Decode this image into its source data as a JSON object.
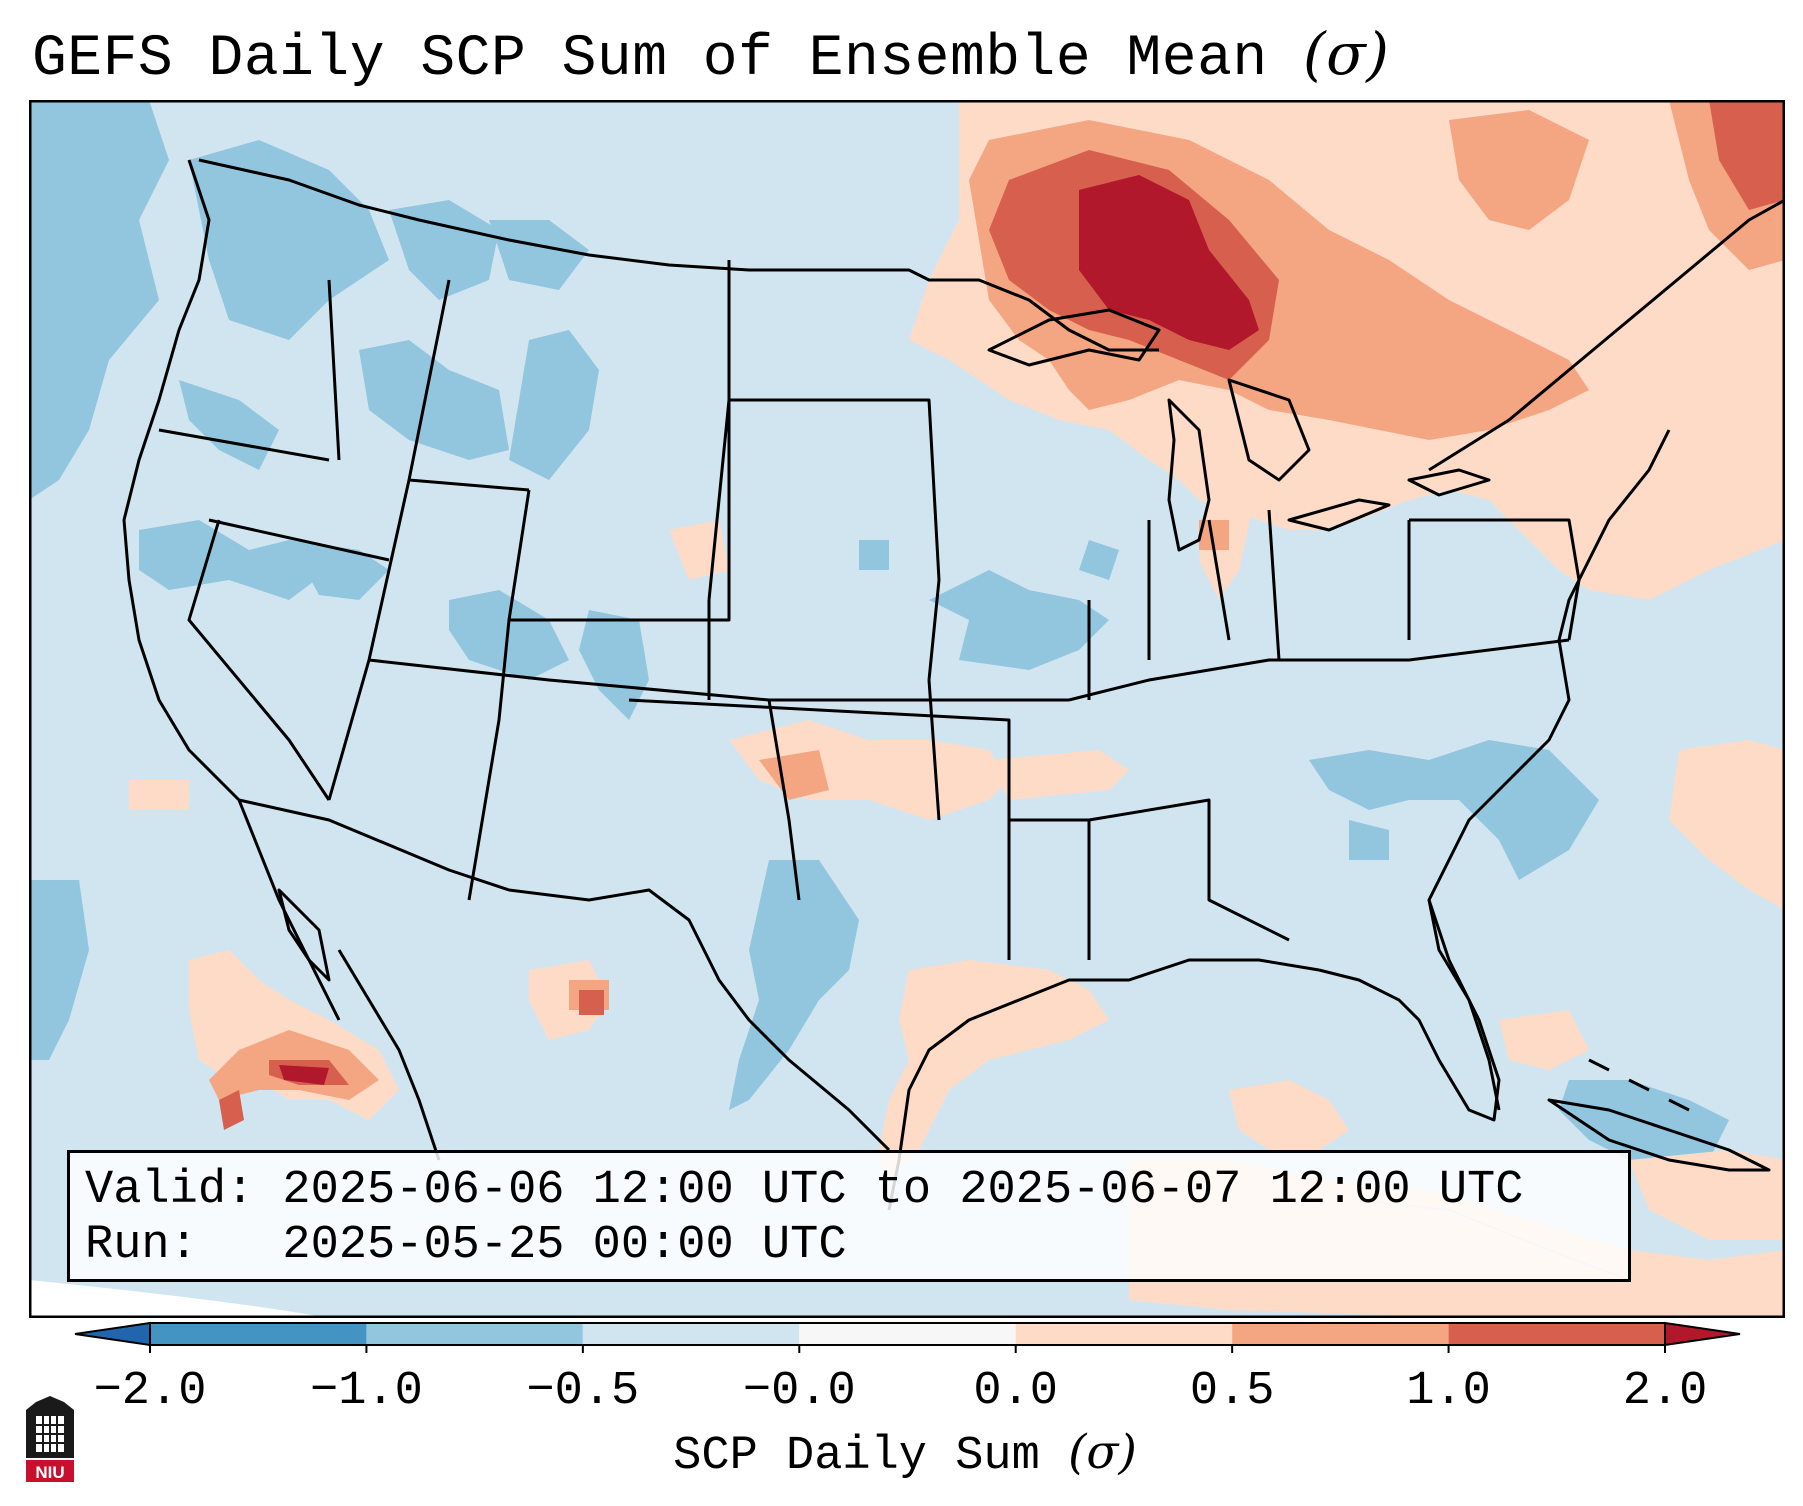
{
  "title": {
    "text": "GEFS Daily SCP Sum of Ensemble Mean",
    "sigma": "(σ)"
  },
  "info": {
    "valid": "Valid: 2025-06-06 12:00 UTC to 2025-06-07 12:00 UTC",
    "run": "Run:   2025-05-25 00:00 UTC"
  },
  "colorbar": {
    "title": "SCP Daily Sum",
    "title_sigma": "(σ)",
    "ticks": [
      "−2.0",
      "−1.0",
      "−0.5",
      "−0.0",
      "0.0",
      "0.5",
      "1.0",
      "2.0"
    ],
    "bins": [
      {
        "from": -2.0,
        "to": -1.0,
        "color": "#4393c3"
      },
      {
        "from": -1.0,
        "to": -0.5,
        "color": "#92c5de"
      },
      {
        "from": -0.5,
        "to": -0.0,
        "color": "#d1e5f0"
      },
      {
        "from": -0.0,
        "to": 0.0,
        "color": "#f7f7f7"
      },
      {
        "from": 0.0,
        "to": 0.5,
        "color": "#fddbc7"
      },
      {
        "from": 0.5,
        "to": 1.0,
        "color": "#f4a582"
      },
      {
        "from": 1.0,
        "to": 2.0,
        "color": "#d6604d"
      }
    ],
    "under_color": "#2166ac",
    "over_color": "#b2182b"
  },
  "logo": {
    "text": "NIU",
    "accent": "#c8102e"
  }
}
